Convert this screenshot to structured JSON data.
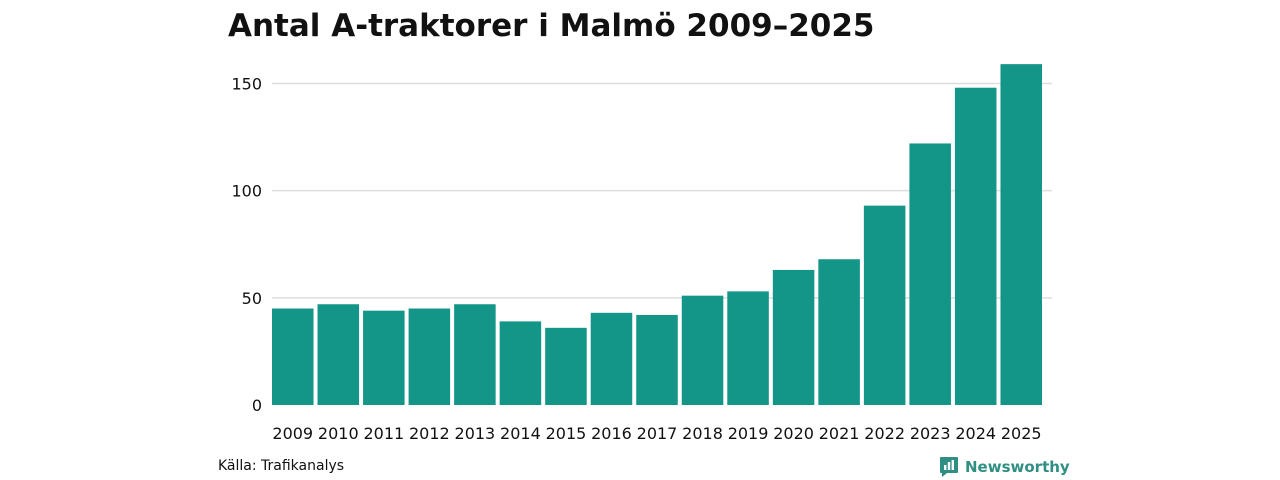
{
  "colors": {
    "bar": "#139688",
    "gridline": "#dddddd",
    "text": "#111111",
    "brand": "#2f8f83"
  },
  "footer": {
    "source": "Källa: Trafikanalys",
    "brand_name": "Newsworthy",
    "brand_icon": "bar-chart-speech-bubble-icon"
  },
  "chart_data": {
    "type": "bar",
    "title": "Antal A-traktorer i Malmö 2009–2025",
    "xlabel": "",
    "ylabel": "",
    "categories": [
      "2009",
      "2010",
      "2011",
      "2012",
      "2013",
      "2014",
      "2015",
      "2016",
      "2017",
      "2018",
      "2019",
      "2020",
      "2021",
      "2022",
      "2023",
      "2024",
      "2025"
    ],
    "values": [
      45,
      47,
      44,
      45,
      47,
      39,
      36,
      43,
      42,
      51,
      53,
      63,
      68,
      93,
      122,
      148,
      159
    ],
    "ylim": [
      0,
      160
    ],
    "yticks": [
      0,
      50,
      100,
      150
    ],
    "grid": true,
    "legend": "none"
  }
}
